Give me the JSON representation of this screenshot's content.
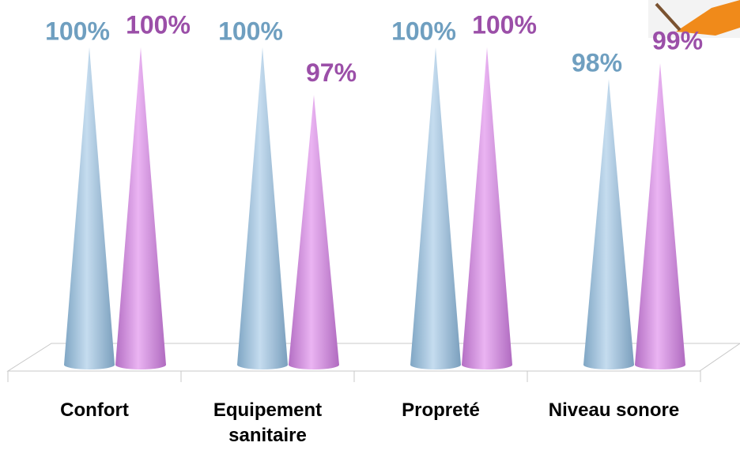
{
  "chart_data": {
    "type": "cone",
    "categories": [
      "Confort",
      "Equipement sanitaire",
      "Propreté",
      "Niveau sonore"
    ],
    "series": [
      {
        "color": "#6f9fc0",
        "values": [
          100,
          100,
          100,
          98
        ],
        "value_labels": [
          "100%",
          "100%",
          "100%",
          "98%"
        ]
      },
      {
        "color": "#9b4fa8",
        "values": [
          100,
          97,
          100,
          99
        ],
        "value_labels": [
          "100%",
          "97%",
          "100%",
          "99%"
        ]
      }
    ],
    "ylim": [
      80,
      100
    ]
  }
}
